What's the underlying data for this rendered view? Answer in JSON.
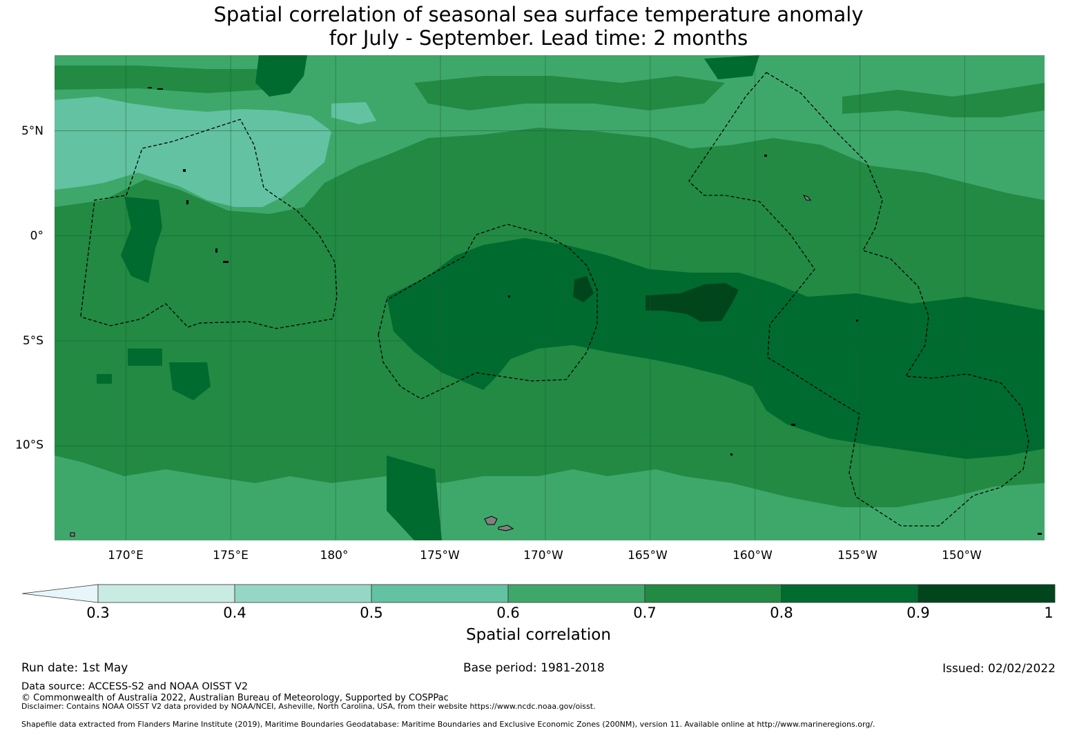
{
  "title_line1": "Spatial correlation of seasonal sea surface temperature anomaly",
  "title_line2": "for July - September. Lead time: 2 months",
  "map": {
    "lat_labels": [
      "5°N",
      "0°",
      "5°S",
      "10°S"
    ],
    "lat_values": [
      5,
      0,
      -5,
      -10
    ],
    "lon_labels": [
      "170°E",
      "175°E",
      "180°",
      "175°W",
      "170°W",
      "165°W",
      "160°W",
      "155°W",
      "150°W"
    ],
    "lon_values": [
      170,
      175,
      180,
      185,
      190,
      195,
      200,
      205,
      210
    ],
    "lon_range": [
      166.6,
      213.8
    ],
    "lat_range": [
      -14.5,
      8.6
    ],
    "gridlines": true,
    "boundary_style": "dashed black",
    "land_color": "#808080",
    "background_color": "#3ea86a"
  },
  "colorbar": {
    "label": "Spatial correlation",
    "ticks": [
      "0.3",
      "0.4",
      "0.5",
      "0.6",
      "0.7",
      "0.8",
      "0.9",
      "1"
    ],
    "extend": "min",
    "levels": [
      0.3,
      0.4,
      0.5,
      0.6,
      0.7,
      0.8,
      0.9,
      1.0
    ],
    "colors": [
      "#c8ebe2",
      "#95d7c5",
      "#62c2a2",
      "#3ea86a",
      "#228a43",
      "#006b2f",
      "#00451c"
    ],
    "under_color": "#e6f6fb"
  },
  "footer": {
    "run_date": "Run date: 1st May",
    "base_period": "Base period: 1981-2018",
    "issued": "Issued: 02/02/2022",
    "data_source": "Data source: ACCESS-S2 and NOAA OISST V2",
    "copyright": "© Commonwealth of Australia 2022, Australian Bureau of Meteorology, Supported by COSPPac",
    "disclaimer": "Disclaimer: Contains NOAA OISST V2 data provided by NOAA/NCEI, Asheville, North Carolina, USA, from their website https://www.ncdc.noaa.gov/oisst.",
    "shapefile": "Shapefile data extracted from Flanders Marine Institute (2019), Maritime Boundaries Geodatabase: Maritime Boundaries and Exclusive Economic Zones (200NM), version 11. Available online at http://www.marineregions.org/."
  }
}
